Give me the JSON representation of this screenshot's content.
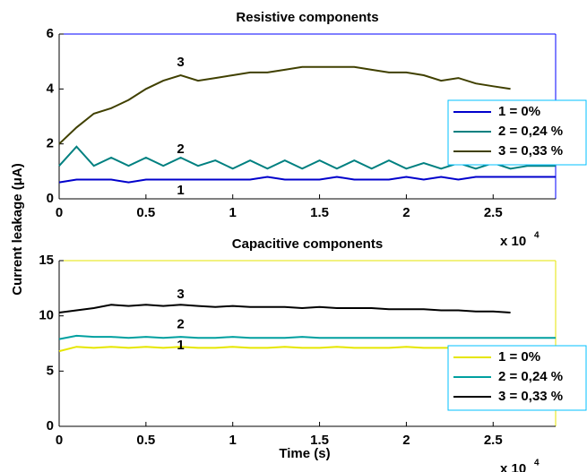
{
  "chart_data": [
    {
      "type": "line",
      "title": "Resistive components",
      "y_label": "Current leakage (μA)",
      "x_multiplier": "x 10",
      "x_exponent": "4",
      "x": [
        0,
        0.1,
        0.2,
        0.3,
        0.4,
        0.5,
        0.6,
        0.7,
        0.8,
        0.9,
        1.0,
        1.1,
        1.2,
        1.3,
        1.4,
        1.5,
        1.6,
        1.7,
        1.8,
        1.9,
        2.0,
        2.1,
        2.2,
        2.3,
        2.4,
        2.5,
        2.6,
        2.7,
        2.8,
        2.86
      ],
      "xlim": [
        0,
        2.86
      ],
      "xticks": [
        0,
        0.5,
        1,
        1.5,
        2,
        2.5
      ],
      "ylim": [
        0,
        6
      ],
      "yticks": [
        0,
        2,
        4,
        6
      ],
      "series": [
        {
          "name": "1 = 0%",
          "color": "#0000cc",
          "values": [
            0.6,
            0.7,
            0.7,
            0.7,
            0.6,
            0.7,
            0.7,
            0.7,
            0.7,
            0.7,
            0.7,
            0.7,
            0.8,
            0.7,
            0.7,
            0.7,
            0.8,
            0.7,
            0.7,
            0.7,
            0.8,
            0.7,
            0.8,
            0.7,
            0.8,
            0.8,
            0.8,
            0.8,
            0.8,
            0.8
          ]
        },
        {
          "name": "2 = 0,24 %",
          "color": "#008080",
          "values": [
            1.2,
            1.9,
            1.2,
            1.5,
            1.2,
            1.5,
            1.2,
            1.5,
            1.2,
            1.4,
            1.1,
            1.4,
            1.1,
            1.4,
            1.1,
            1.4,
            1.1,
            1.4,
            1.1,
            1.4,
            1.1,
            1.3,
            1.1,
            1.3,
            1.1,
            1.3,
            1.1,
            1.2,
            1.2,
            1.2
          ]
        },
        {
          "name": "3 = 0,33 %",
          "color": "#404000",
          "values": [
            2.0,
            2.6,
            3.1,
            3.3,
            3.6,
            4.0,
            4.3,
            4.5,
            4.3,
            4.4,
            4.5,
            4.6,
            4.6,
            4.7,
            4.8,
            4.8,
            4.8,
            4.8,
            4.7,
            4.6,
            4.6,
            4.5,
            4.3,
            4.4,
            4.2,
            4.1,
            4.0,
            null,
            null,
            null
          ]
        }
      ],
      "annotations": [
        {
          "text": "3",
          "x": 0.7,
          "y": 4.95
        },
        {
          "text": "2",
          "x": 0.7,
          "y": 1.8
        },
        {
          "text": "1",
          "x": 0.7,
          "y": 0.3
        }
      ]
    },
    {
      "type": "line",
      "title": "Capacitive components",
      "x_label": "Time (s)",
      "x_multiplier": "x 10",
      "x_exponent": "4",
      "x": [
        0,
        0.1,
        0.2,
        0.3,
        0.4,
        0.5,
        0.6,
        0.7,
        0.8,
        0.9,
        1.0,
        1.1,
        1.2,
        1.3,
        1.4,
        1.5,
        1.6,
        1.7,
        1.8,
        1.9,
        2.0,
        2.1,
        2.2,
        2.3,
        2.4,
        2.5,
        2.6,
        2.7,
        2.8,
        2.86
      ],
      "xlim": [
        0,
        2.86
      ],
      "xticks": [
        0,
        0.5,
        1,
        1.5,
        2,
        2.5
      ],
      "ylim": [
        0,
        15
      ],
      "yticks": [
        0,
        5,
        10,
        15
      ],
      "series": [
        {
          "name": "1 = 0%",
          "color": "#e6e600",
          "values": [
            6.8,
            7.2,
            7.1,
            7.2,
            7.1,
            7.2,
            7.1,
            7.2,
            7.1,
            7.1,
            7.2,
            7.1,
            7.1,
            7.2,
            7.1,
            7.1,
            7.2,
            7.1,
            7.1,
            7.1,
            7.2,
            7.1,
            7.1,
            7.1,
            7.1,
            7.1,
            7.1,
            7.1,
            7.1,
            7.1
          ]
        },
        {
          "name": "2 = 0,24 %",
          "color": "#00a0a0",
          "values": [
            7.9,
            8.2,
            8.1,
            8.1,
            8.0,
            8.1,
            8.0,
            8.1,
            8.0,
            8.0,
            8.1,
            8.0,
            8.0,
            8.0,
            8.1,
            8.0,
            8.0,
            8.0,
            8.0,
            8.0,
            8.0,
            8.0,
            8.0,
            8.0,
            8.0,
            8.0,
            8.0,
            8.0,
            8.0,
            8.0
          ]
        },
        {
          "name": "3 = 0,33 %",
          "color": "#000000",
          "values": [
            10.3,
            10.5,
            10.7,
            11.0,
            10.9,
            11.0,
            10.9,
            11.0,
            10.9,
            10.8,
            10.9,
            10.8,
            10.8,
            10.8,
            10.7,
            10.8,
            10.7,
            10.7,
            10.7,
            10.6,
            10.6,
            10.6,
            10.5,
            10.5,
            10.4,
            10.4,
            10.3,
            null,
            null,
            null
          ]
        }
      ],
      "annotations": [
        {
          "text": "3",
          "x": 0.7,
          "y": 11.9
        },
        {
          "text": "2",
          "x": 0.7,
          "y": 9.2
        },
        {
          "text": "1",
          "x": 0.7,
          "y": 7.3
        }
      ]
    }
  ]
}
